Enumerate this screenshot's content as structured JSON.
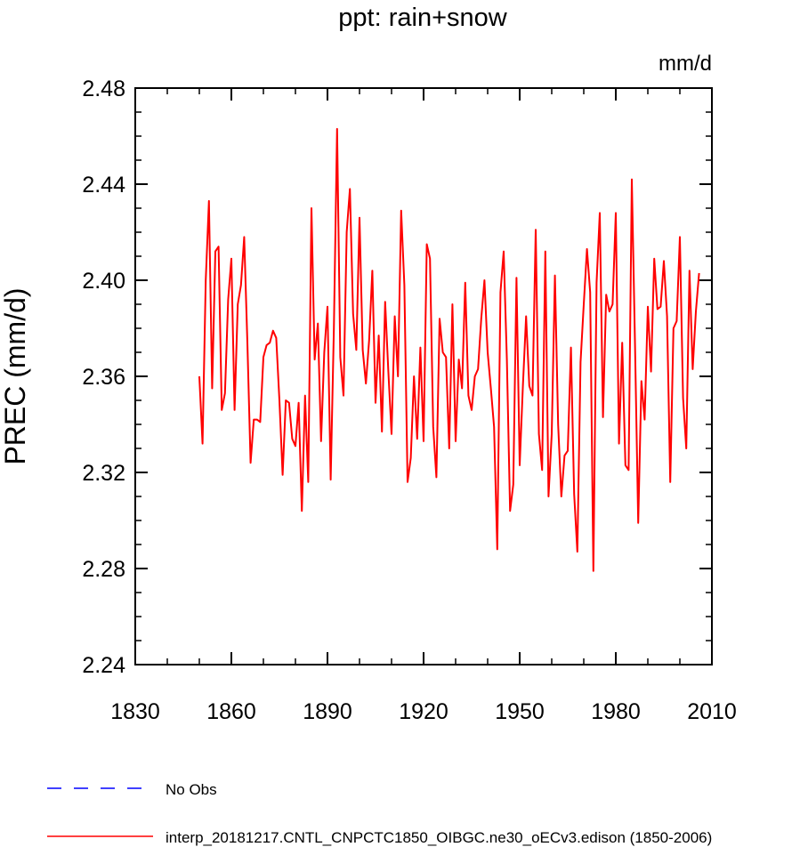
{
  "chart_data": {
    "type": "line",
    "title": "ppt: rain+snow",
    "units_label": "mm/d",
    "xlabel": "",
    "ylabel": "PREC  (mm/d)",
    "xlim": [
      1830,
      2010
    ],
    "ylim": [
      2.24,
      2.48
    ],
    "xticks": [
      1830,
      1860,
      1890,
      1920,
      1950,
      1980,
      2010
    ],
    "xtick_labels": [
      "1830",
      "1860",
      "1890",
      "1920",
      "1950",
      "1980",
      "2010"
    ],
    "yticks": [
      2.24,
      2.28,
      2.32,
      2.36,
      2.4,
      2.44,
      2.48
    ],
    "ytick_labels": [
      "2.24",
      "2.28",
      "2.32",
      "2.36",
      "2.40",
      "2.44",
      "2.48"
    ],
    "grid": false,
    "legend_position": "bottom",
    "legend": [
      {
        "label": "No Obs",
        "color": "#0000ff",
        "style": "dashed"
      },
      {
        "label": "interp_20181217.CNTL_CNPCTC1850_OIBGC.ne30_oECv3.edison (1850-2006)",
        "color": "#ff0000",
        "style": "solid"
      }
    ],
    "series": [
      {
        "name": "interp_20181217.CNTL_CNPCTC1850_OIBGC.ne30_oECv3.edison (1850-2006)",
        "color": "#ff0000",
        "x": [
          1850,
          1851,
          1852,
          1853,
          1854,
          1855,
          1856,
          1857,
          1858,
          1859,
          1860,
          1861,
          1862,
          1863,
          1864,
          1865,
          1866,
          1867,
          1868,
          1869,
          1870,
          1871,
          1872,
          1873,
          1874,
          1875,
          1876,
          1877,
          1878,
          1879,
          1880,
          1881,
          1882,
          1883,
          1884,
          1885,
          1886,
          1887,
          1888,
          1889,
          1890,
          1891,
          1892,
          1893,
          1894,
          1895,
          1896,
          1897,
          1898,
          1899,
          1900,
          1901,
          1902,
          1903,
          1904,
          1905,
          1906,
          1907,
          1908,
          1909,
          1910,
          1911,
          1912,
          1913,
          1914,
          1915,
          1916,
          1917,
          1918,
          1919,
          1920,
          1921,
          1922,
          1923,
          1924,
          1925,
          1926,
          1927,
          1928,
          1929,
          1930,
          1931,
          1932,
          1933,
          1934,
          1935,
          1936,
          1937,
          1938,
          1939,
          1940,
          1941,
          1942,
          1943,
          1944,
          1945,
          1946,
          1947,
          1948,
          1949,
          1950,
          1951,
          1952,
          1953,
          1954,
          1955,
          1956,
          1957,
          1958,
          1959,
          1960,
          1961,
          1962,
          1963,
          1964,
          1965,
          1966,
          1967,
          1968,
          1969,
          1970,
          1971,
          1972,
          1973,
          1974,
          1975,
          1976,
          1977,
          1978,
          1979,
          1980,
          1981,
          1982,
          1983,
          1984,
          1985,
          1986,
          1987,
          1988,
          1989,
          1990,
          1991,
          1992,
          1993,
          1994,
          1995,
          1996,
          1997,
          1998,
          1999,
          2000,
          2001,
          2002,
          2003,
          2004,
          2005,
          2006
        ],
        "values": [
          2.36,
          2.332,
          2.4,
          2.433,
          2.355,
          2.412,
          2.414,
          2.346,
          2.353,
          2.392,
          2.409,
          2.346,
          2.39,
          2.398,
          2.418,
          2.374,
          2.324,
          2.342,
          2.342,
          2.341,
          2.368,
          2.373,
          2.374,
          2.379,
          2.376,
          2.35,
          2.319,
          2.35,
          2.349,
          2.334,
          2.331,
          2.349,
          2.304,
          2.352,
          2.316,
          2.43,
          2.367,
          2.382,
          2.333,
          2.37,
          2.389,
          2.317,
          2.38,
          2.463,
          2.368,
          2.352,
          2.42,
          2.438,
          2.386,
          2.371,
          2.426,
          2.371,
          2.357,
          2.375,
          2.404,
          2.349,
          2.377,
          2.337,
          2.391,
          2.362,
          2.336,
          2.385,
          2.36,
          2.429,
          2.398,
          2.316,
          2.326,
          2.36,
          2.334,
          2.372,
          2.333,
          2.415,
          2.409,
          2.339,
          2.318,
          2.384,
          2.37,
          2.368,
          2.33,
          2.39,
          2.333,
          2.367,
          2.355,
          2.399,
          2.352,
          2.346,
          2.36,
          2.363,
          2.384,
          2.4,
          2.37,
          2.355,
          2.339,
          2.288,
          2.395,
          2.412,
          2.367,
          2.304,
          2.315,
          2.401,
          2.323,
          2.356,
          2.385,
          2.356,
          2.352,
          2.421,
          2.336,
          2.321,
          2.412,
          2.31,
          2.336,
          2.402,
          2.34,
          2.31,
          2.327,
          2.329,
          2.372,
          2.311,
          2.287,
          2.366,
          2.39,
          2.413,
          2.395,
          2.279,
          2.399,
          2.428,
          2.343,
          2.394,
          2.387,
          2.39,
          2.428,
          2.332,
          2.374,
          2.323,
          2.321,
          2.442,
          2.373,
          2.299,
          2.358,
          2.342,
          2.389,
          2.362,
          2.409,
          2.388,
          2.389,
          2.408,
          2.385,
          2.316,
          2.38,
          2.383,
          2.418,
          2.351,
          2.33,
          2.404,
          2.363,
          2.387,
          2.403
        ]
      }
    ]
  }
}
